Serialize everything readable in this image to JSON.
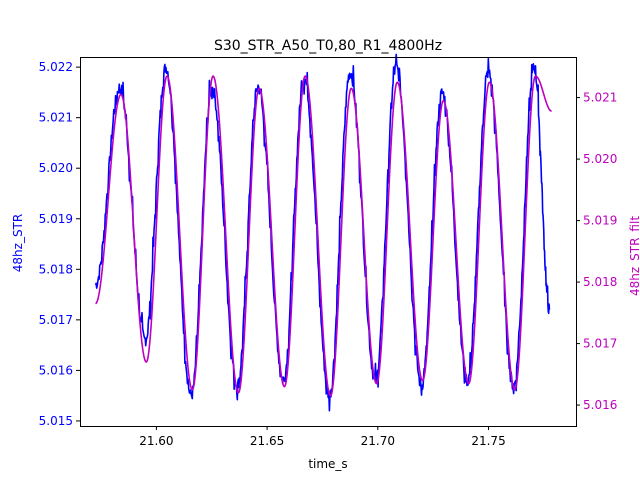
{
  "chart_data": {
    "type": "line",
    "title": "S30_STR_A50_T0,80_R1_4800Hz",
    "xlabel": "time_s",
    "ylabel_left": "48hz_STR",
    "ylabel_right": "48hz_STR_filt",
    "xlim": [
      21.5655,
      21.7895
    ],
    "ylim_left": [
      5.0149,
      5.0222
    ],
    "ylim_right": [
      5.01566,
      5.02166
    ],
    "x_ticks": [
      21.6,
      21.65,
      21.7,
      21.75
    ],
    "x_tick_labels": [
      "21.60",
      "21.65",
      "21.70",
      "21.75"
    ],
    "y_left_ticks": [
      5.015,
      5.016,
      5.017,
      5.018,
      5.019,
      5.02,
      5.021,
      5.022
    ],
    "y_left_tick_labels": [
      "5.015",
      "5.016",
      "5.017",
      "5.018",
      "5.019",
      "5.020",
      "5.021",
      "5.022"
    ],
    "y_right_ticks": [
      5.016,
      5.017,
      5.018,
      5.019,
      5.02,
      5.021
    ],
    "y_right_tick_labels": [
      "5.016",
      "5.017",
      "5.018",
      "5.019",
      "5.020",
      "5.021"
    ],
    "grid": false,
    "colors": {
      "raw": "#0000ff",
      "filtered": "#bf00bf",
      "axes": "#000000"
    },
    "series": [
      {
        "axis": "left",
        "color": "#0000ff",
        "x_start": 21.5725,
        "x_end": 21.7775,
        "period": 0.0208,
        "first_peak_x": 21.5835,
        "peaks": [
          5.0216,
          5.022,
          5.0216,
          5.0216,
          5.0218,
          5.0219,
          5.022,
          5.0215,
          5.0219,
          5.022
        ],
        "troughs": [
          5.0166,
          5.0155,
          5.0157,
          5.0158,
          5.0155,
          5.0158,
          5.0157,
          5.0158,
          5.0157,
          5.0158
        ],
        "start_value": 5.0177,
        "end_value": 5.0172
      },
      {
        "axis": "right",
        "color": "#bf00bf",
        "x_start": 21.5725,
        "x_end": 21.7785,
        "period": 0.0208,
        "first_peak_x": 21.584,
        "peaks": [
          5.02105,
          5.02135,
          5.02135,
          5.02115,
          5.02135,
          5.02115,
          5.02125,
          5.02095,
          5.02125,
          5.02135
        ],
        "troughs": [
          5.0167,
          5.01625,
          5.0162,
          5.0163,
          5.01615,
          5.01635,
          5.0164,
          5.01635,
          5.01625,
          5.01625
        ],
        "start_value": 5.01765,
        "end_value": 5.02078
      }
    ]
  }
}
